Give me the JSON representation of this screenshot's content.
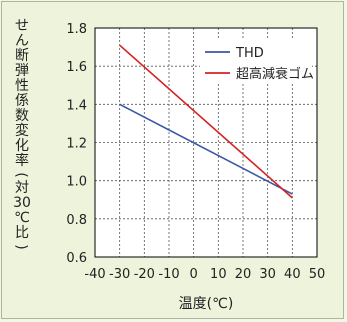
{
  "chart_data": {
    "type": "line",
    "title": "",
    "xlabel": "温度(℃)",
    "ylabel_chars": [
      "せ",
      "ん",
      "断",
      "弾",
      "性",
      "係",
      "数",
      "変",
      "化",
      "率",
      "(",
      "対",
      "30",
      "℃",
      "比",
      ")"
    ],
    "xlim": [
      -40,
      50
    ],
    "ylim": [
      0.6,
      1.8
    ],
    "x_ticks": [
      -40,
      -30,
      -20,
      -10,
      0,
      10,
      20,
      30,
      40,
      50
    ],
    "x_tick_labels": [
      "-40",
      "-30",
      "-20",
      "-10",
      "0",
      "10",
      "20",
      "30",
      "40",
      "50"
    ],
    "y_ticks": [
      0.6,
      0.8,
      1.0,
      1.2,
      1.4,
      1.6,
      1.8
    ],
    "y_tick_labels": [
      "0.6",
      "0.8",
      "1.0",
      "1.2",
      "1.4",
      "1.6",
      "1.8"
    ],
    "grid": true,
    "legend_position": "top-right",
    "series": [
      {
        "name": "THD",
        "color": "#3a56a8",
        "x": [
          -30,
          40
        ],
        "y": [
          1.4,
          0.93
        ]
      },
      {
        "name": "超高減衰ゴム",
        "color": "#d42323",
        "x": [
          -30,
          40
        ],
        "y": [
          1.71,
          0.91
        ]
      }
    ]
  }
}
